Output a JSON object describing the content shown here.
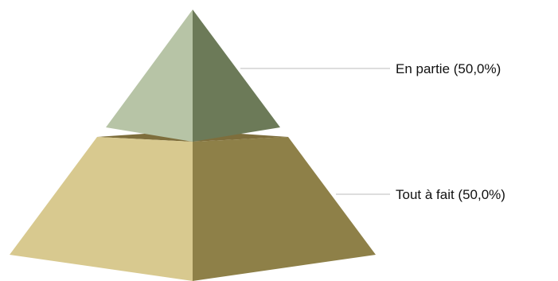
{
  "chart_data": {
    "type": "pyramid",
    "categories": [
      "En partie",
      "Tout à fait"
    ],
    "values": [
      50.0,
      50.0
    ],
    "labels": [
      "En partie (50,0%)",
      "Tout à fait (50,0%)"
    ],
    "colors": {
      "En partie": {
        "left": "#b7c4a6",
        "right": "#6c7a58",
        "top": "#8a8a66"
      },
      "Tout à fait": {
        "left": "#d8c98f",
        "right": "#8e8048",
        "top": "#7e6e3c"
      }
    },
    "leader_line_color": "#bbbbbb",
    "legend": "right"
  }
}
